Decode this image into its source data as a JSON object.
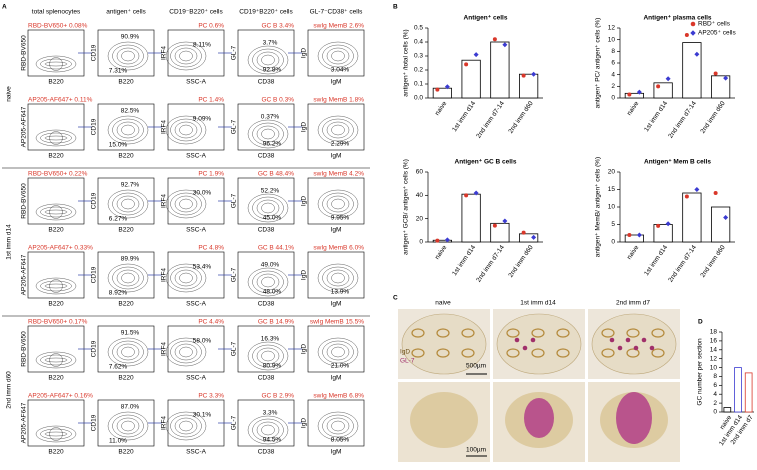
{
  "panel_labels": [
    "A",
    "B",
    "C",
    "D"
  ],
  "panel_a": {
    "columns": [
      {
        "title": "total splenocytes",
        "x": "B220"
      },
      {
        "title": "antigen⁺ cells",
        "x": "B220",
        "y": "CD19"
      },
      {
        "title": "CD19⁻B220⁺ cells",
        "x": "SSC-A",
        "y": "IRF4"
      },
      {
        "title": "CD19⁺B220⁺ cells",
        "x": "CD38",
        "y": "GL-7"
      },
      {
        "title": "GL-7⁻CD38⁺ cells",
        "x": "IgM",
        "y": "IgD"
      }
    ],
    "groups": [
      {
        "label": "naive",
        "rows": [
          {
            "ylabel": "RBD-BV650",
            "cells": [
              [
                "RBD-BV650+ 0.08%"
              ],
              [
                "90.9%",
                "7.31%"
              ],
              [
                "PC 0.6%",
                "8.11%"
              ],
              [
                "GC B 3.4%",
                "3.7%",
                "92.8%"
              ],
              [
                "swIg MemB 2.6%",
                "3.04%"
              ]
            ]
          },
          {
            "ylabel": "AP205-AF647",
            "cells": [
              [
                "AP205-AF647+ 0.11%"
              ],
              [
                "82.5%",
                "15.0%"
              ],
              [
                "PC 1.4%",
                "9.09%"
              ],
              [
                "GC B 0.3%",
                "0.37%",
                "96.2%"
              ],
              [
                "swIg MemB 1.8%",
                "2.29%"
              ]
            ]
          }
        ]
      },
      {
        "label": "1st imm d14",
        "rows": [
          {
            "ylabel": "RBD-BV650",
            "cells": [
              [
                "RBD-BV650+ 0.22%"
              ],
              [
                "92.7%",
                "6.27%"
              ],
              [
                "PC 1.9%",
                "30.0%"
              ],
              [
                "GC B 48.4%",
                "52.2%",
                "45.0%"
              ],
              [
                "swIg MemB 4.2%",
                "9.95%"
              ]
            ]
          },
          {
            "ylabel": "AP205-AF647",
            "cells": [
              [
                "AP205-AF647+ 0.33%"
              ],
              [
                "89.9%",
                "8.92%"
              ],
              [
                "PC 4.8%",
                "53.4%"
              ],
              [
                "GC B 44.1%",
                "49.0%",
                "48.0%"
              ],
              [
                "swIg MemB 6.0%",
                "13.9%"
              ]
            ]
          }
        ]
      },
      {
        "label": "2nd imm d60",
        "rows": [
          {
            "ylabel": "RBD-BV650",
            "cells": [
              [
                "RBD-BV650+ 0.17%"
              ],
              [
                "91.5%",
                "7.62%"
              ],
              [
                "PC 4.4%",
                "58.0%"
              ],
              [
                "GC B 14.9%",
                "16.3%",
                "80.9%"
              ],
              [
                "swIg MemB 15.5%",
                "21.0%"
              ]
            ]
          },
          {
            "ylabel": "AP205-AF647",
            "cells": [
              [
                "AP205-AF647+ 0.16%"
              ],
              [
                "87.0%",
                "11.0%"
              ],
              [
                "PC 3.3%",
                "30.1%"
              ],
              [
                "GC B 2.9%",
                "3.3%",
                "94.5%"
              ],
              [
                "swIg MemB 6.8%",
                "8.05%"
              ]
            ]
          }
        ]
      }
    ]
  },
  "chart_data": [
    {
      "type": "bar",
      "title": "Antigen⁺ cells",
      "ylabel": "antigen⁺ /total cells (%)",
      "categories": [
        "naive",
        "1st imm d14",
        "2nd imm d7-14",
        "2nd imm d60"
      ],
      "values": [
        0.07,
        0.27,
        0.4,
        0.17
      ],
      "ylim": [
        0,
        0.5
      ],
      "yticks": [
        {
          "value": 0,
          "label": "0.0"
        },
        {
          "value": 0.1,
          "label": "0.1"
        },
        {
          "value": 0.2,
          "label": "0.2"
        },
        {
          "value": 0.3,
          "label": "0.3"
        },
        {
          "value": 0.4,
          "label": "0.4"
        },
        {
          "value": 0.5,
          "label": "0.5"
        }
      ],
      "series": [
        {
          "color": "#d9372a",
          "values": [
            0.06,
            0.24,
            0.42,
            0.16
          ]
        },
        {
          "color": "#3b3bd1",
          "values": [
            0.08,
            0.31,
            0.38,
            0.17
          ]
        }
      ]
    },
    {
      "type": "bar",
      "title": "Antigen⁺ plasma cells",
      "ylabel": "antigen⁺ PC/ antigen⁺ cells (%)",
      "categories": [
        "naive",
        "1st imm d14",
        "2nd imm d7-14",
        "2nd imm d60"
      ],
      "values": [
        0.8,
        2.6,
        9.5,
        3.8
      ],
      "ylim": [
        0,
        12
      ],
      "yticks": [
        0,
        2,
        4,
        6,
        8,
        10,
        12
      ],
      "series": [
        {
          "name": "RBD⁺ cells",
          "color": "#d9372a",
          "values": [
            0.6,
            2.0,
            10.8,
            4.2
          ]
        },
        {
          "name": "AP205⁺ cells",
          "color": "#3b3bd1",
          "values": [
            1.0,
            3.3,
            7.5,
            3.4
          ]
        }
      ]
    },
    {
      "type": "bar",
      "title": "Antigen⁺ GC B cells",
      "ylabel": "antigen⁺ GCB/ antigen⁺ cells (%)",
      "categories": [
        "naive",
        "1st imm d14",
        "2nd imm d7-14",
        "2nd imm d60"
      ],
      "values": [
        1.5,
        41,
        16,
        7
      ],
      "ylim": [
        0,
        60
      ],
      "yticks": [
        0,
        20,
        40,
        60
      ],
      "series": [
        {
          "color": "#d9372a",
          "values": [
            1.2,
            40,
            14,
            8
          ]
        },
        {
          "color": "#3b3bd1",
          "values": [
            1.8,
            42,
            18,
            4
          ]
        }
      ]
    },
    {
      "type": "bar",
      "title": "Antigen⁺ Mem B cells",
      "ylabel": "antigen⁺ MemB/ antigen⁺ cells (%)",
      "categories": [
        "naive",
        "1st imm d14",
        "2nd imm d7-14",
        "2nd imm d60"
      ],
      "values": [
        2,
        5,
        14,
        10
      ],
      "ylim": [
        0,
        20
      ],
      "yticks": [
        0,
        5,
        10,
        15,
        20
      ],
      "series": [
        {
          "color": "#d9372a",
          "values": [
            2,
            4.6,
            13,
            14
          ]
        },
        {
          "color": "#3b3bd1",
          "values": [
            2,
            5.2,
            15,
            7
          ]
        }
      ]
    },
    {
      "type": "bar",
      "ylabel": "GC number per section",
      "categories": [
        "naive",
        "1st imm d14",
        "2nd imm d7"
      ],
      "values": [
        1,
        10,
        8.8
      ],
      "colors": [
        "#000000",
        "#3b3bd1",
        "#d9372a"
      ],
      "ylim": [
        0,
        18
      ],
      "yticks": [
        0,
        2,
        4,
        6,
        8,
        10,
        12,
        14,
        16,
        18
      ]
    }
  ],
  "panel_c": {
    "columns": [
      "naive",
      "1st imm d14",
      "2nd imm d7"
    ],
    "stains": [
      "IgD",
      "GL-7"
    ],
    "scale_top": "500µm",
    "scale_bottom": "100µm"
  }
}
